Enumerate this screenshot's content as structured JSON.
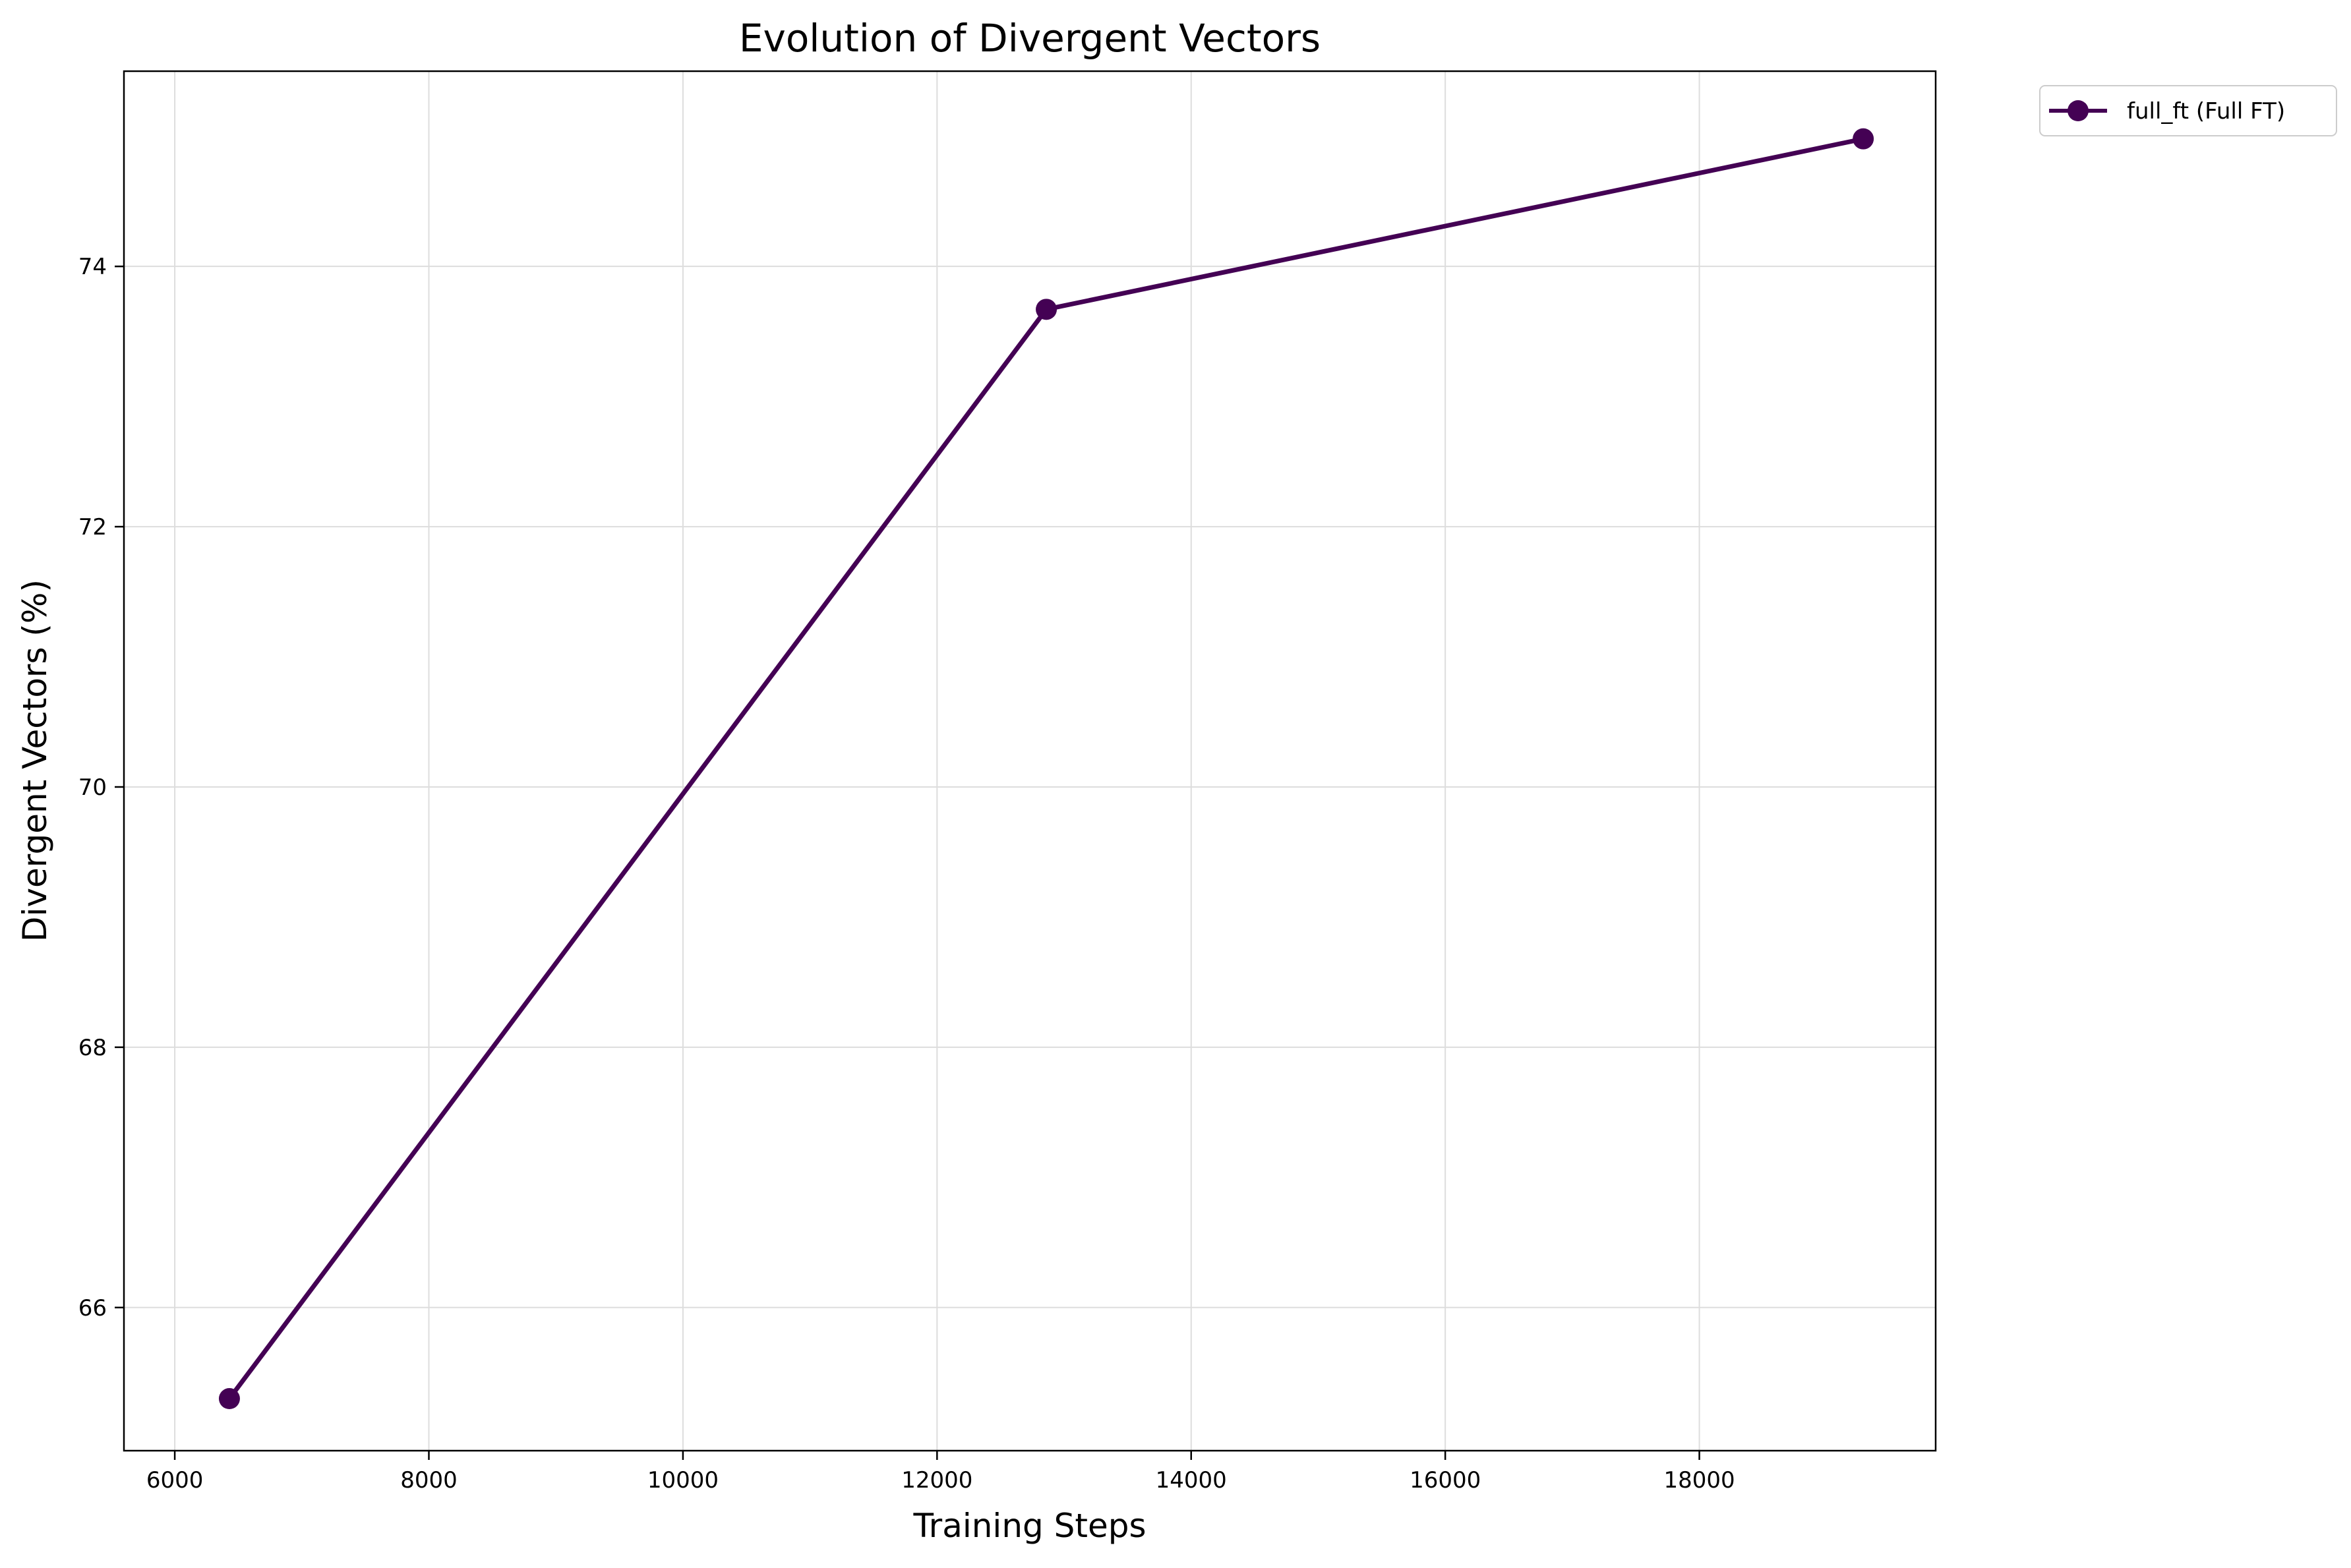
{
  "chart_data": {
    "type": "line",
    "title": "Evolution of Divergent Vectors",
    "xlabel": "Training Steps",
    "ylabel": "Divergent Vectors (%)",
    "xlim": [
      5600,
      19860
    ],
    "ylim": [
      64.9,
      75.5
    ],
    "xticks": [
      6000,
      8000,
      10000,
      12000,
      14000,
      16000,
      18000
    ],
    "yticks": [
      66,
      68,
      70,
      72,
      74
    ],
    "grid": true,
    "legend_position": "outside-top-right",
    "series": [
      {
        "name": "full_ft (Full FT)",
        "color": "#440154",
        "marker": "circle",
        "x": [
          6430,
          12860,
          19290
        ],
        "y": [
          65.3,
          73.67,
          74.98
        ]
      }
    ]
  }
}
